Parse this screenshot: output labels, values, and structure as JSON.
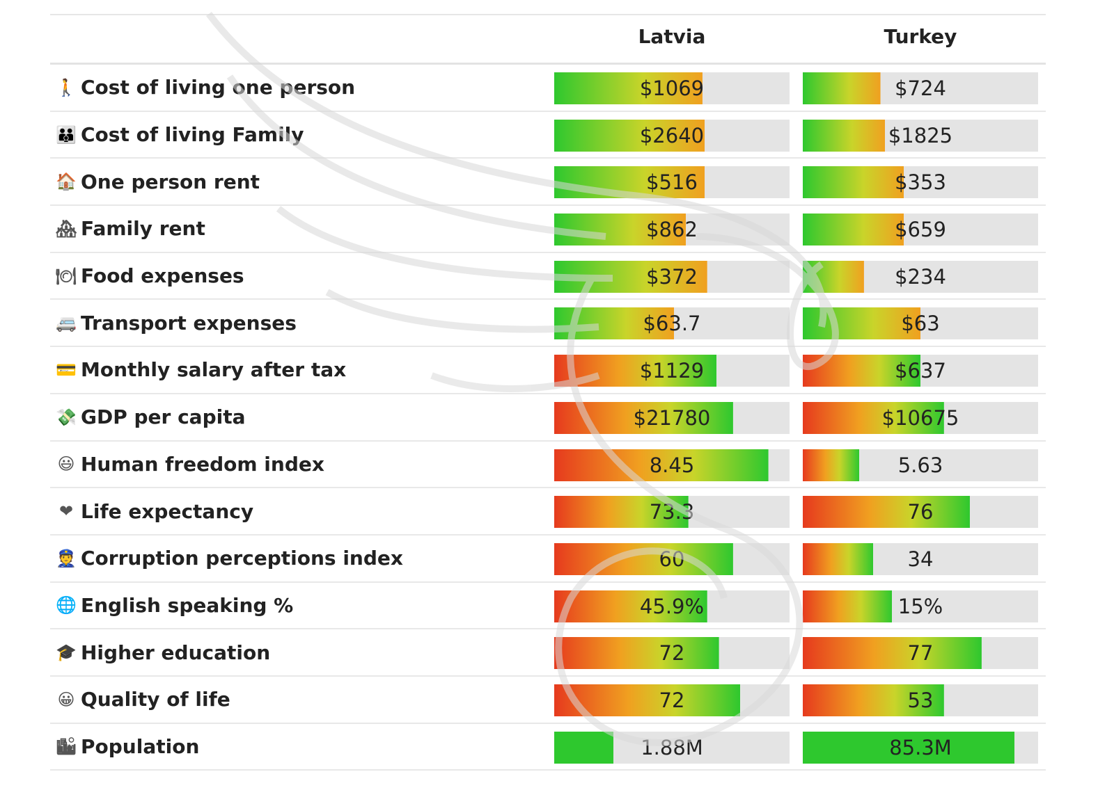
{
  "colors": {
    "green": "#2ec82e",
    "yellow": "#c9d42a",
    "orange": "#f0a020",
    "red": "#e63a1e",
    "track": "#e4e4e4"
  },
  "chart_data": {
    "type": "bar",
    "columns": [
      "Latvia",
      "Turkey"
    ],
    "rows": [
      {
        "icon": "person-walking-icon",
        "glyph": "🚶",
        "label": "Cost of living one person",
        "values": [
          "$1069",
          "$724"
        ],
        "fill": [
          0.63,
          0.33
        ],
        "scheme": "cost"
      },
      {
        "icon": "family-icon",
        "glyph": "👪",
        "label": "Cost of living Family",
        "values": [
          "$2640",
          "$1825"
        ],
        "fill": [
          0.64,
          0.35
        ],
        "scheme": "cost"
      },
      {
        "icon": "house-icon",
        "glyph": "🏠",
        "label": "One person rent",
        "values": [
          "$516",
          "$353"
        ],
        "fill": [
          0.64,
          0.43
        ],
        "scheme": "cost"
      },
      {
        "icon": "houses-icon",
        "glyph": "🏘",
        "label": "Family rent",
        "values": [
          "$862",
          "$659"
        ],
        "fill": [
          0.56,
          0.43
        ],
        "scheme": "cost"
      },
      {
        "icon": "plate-icon",
        "glyph": "🍽",
        "label": "Food expenses",
        "values": [
          "$372",
          "$234"
        ],
        "fill": [
          0.65,
          0.26
        ],
        "scheme": "cost"
      },
      {
        "icon": "bus-icon",
        "glyph": "🚐",
        "label": "Transport expenses",
        "values": [
          "$63.7",
          "$63"
        ],
        "fill": [
          0.51,
          0.5
        ],
        "scheme": "cost"
      },
      {
        "icon": "credit-card-icon",
        "glyph": "💳",
        "label": "Monthly salary after tax",
        "values": [
          "$1129",
          "$637"
        ],
        "fill": [
          0.69,
          0.5
        ],
        "scheme": "benefit"
      },
      {
        "icon": "money-wings-icon",
        "glyph": "💸",
        "label": "GDP per capita",
        "values": [
          "$21780",
          "$10675"
        ],
        "fill": [
          0.76,
          0.6
        ],
        "scheme": "benefit"
      },
      {
        "icon": "smiley-icon",
        "glyph": "😃",
        "label": "Human freedom index",
        "values": [
          "8.45",
          "5.63"
        ],
        "fill": [
          0.91,
          0.24
        ],
        "scheme": "benefit"
      },
      {
        "icon": "heart-icon",
        "glyph": "❤",
        "label": "Life expectancy",
        "values": [
          "73.3",
          "76"
        ],
        "fill": [
          0.57,
          0.71
        ],
        "scheme": "benefit"
      },
      {
        "icon": "police-officer-icon",
        "glyph": "👮",
        "label": "Corruption perceptions index",
        "values": [
          "60",
          "34"
        ],
        "fill": [
          0.76,
          0.3
        ],
        "scheme": "benefit"
      },
      {
        "icon": "globe-icon",
        "glyph": "🌐",
        "label": "English speaking %",
        "values": [
          "45.9%",
          "15%"
        ],
        "fill": [
          0.65,
          0.38
        ],
        "scheme": "benefit"
      },
      {
        "icon": "graduation-cap-icon",
        "glyph": "🎓",
        "label": "Higher education",
        "values": [
          "72",
          "77"
        ],
        "fill": [
          0.7,
          0.76
        ],
        "scheme": "benefit"
      },
      {
        "icon": "grinning-face-icon",
        "glyph": "😀",
        "label": "Quality of life",
        "values": [
          "72",
          "53"
        ],
        "fill": [
          0.79,
          0.6
        ],
        "scheme": "benefit"
      },
      {
        "icon": "city-icon",
        "glyph": "🏙",
        "label": "Population",
        "values": [
          "1.88M",
          "85.3M"
        ],
        "fill": [
          0.25,
          0.9
        ],
        "scheme": "population"
      }
    ]
  }
}
